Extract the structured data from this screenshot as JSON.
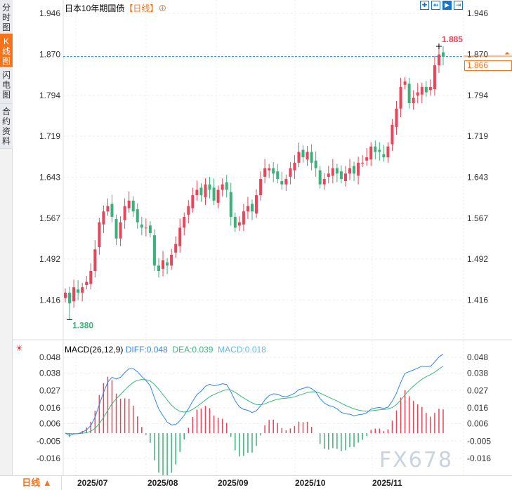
{
  "sidebar": {
    "tabs": [
      {
        "label": "分时图"
      },
      {
        "label": "K线图",
        "active": true
      },
      {
        "label": "闪电图"
      },
      {
        "label": "合约资料"
      }
    ]
  },
  "header": {
    "title": "日本10年期国债",
    "period": "【日线】",
    "zoom_icon": "circle-plus-icon"
  },
  "toolbar": [
    {
      "icon": "crosshair-icon"
    },
    {
      "icon": "fit-range-icon"
    },
    {
      "icon": "play-axis-icon",
      "active": true
    },
    {
      "icon": "jump-end-icon"
    }
  ],
  "colors": {
    "up": "#e8455a",
    "down": "#3bb27a",
    "diff": "#2f86f0",
    "dea": "#36b97b",
    "macd_label": "#5bbbe8",
    "accent": "#f87217",
    "current_line": "#1e88e5"
  },
  "chart_data": {
    "type": "candlestick",
    "y_ticks": [
      "1.946",
      "1.870",
      "1.794",
      "1.719",
      "1.643",
      "1.567",
      "1.492",
      "1.416"
    ],
    "ylim": [
      1.36,
      1.96
    ],
    "max_label": "1.885",
    "min_label": "1.380",
    "max_value": 1.885,
    "min_value": 1.38,
    "current_value": "1.866",
    "x_ticks": [
      "2025/07",
      "2025/08",
      "2025/09",
      "2025/10",
      "2025/11"
    ],
    "closes": [
      1.43,
      1.41,
      1.44,
      1.43,
      1.44,
      1.45,
      1.47,
      1.51,
      1.56,
      1.58,
      1.59,
      1.57,
      1.53,
      1.56,
      1.59,
      1.6,
      1.58,
      1.56,
      1.55,
      1.55,
      1.54,
      1.48,
      1.47,
      1.49,
      1.48,
      1.5,
      1.52,
      1.55,
      1.57,
      1.59,
      1.61,
      1.62,
      1.61,
      1.63,
      1.62,
      1.6,
      1.62,
      1.63,
      1.62,
      1.57,
      1.55,
      1.56,
      1.58,
      1.59,
      1.58,
      1.61,
      1.64,
      1.66,
      1.66,
      1.65,
      1.64,
      1.63,
      1.64,
      1.66,
      1.67,
      1.69,
      1.68,
      1.69,
      1.67,
      1.66,
      1.63,
      1.64,
      1.65,
      1.66,
      1.65,
      1.64,
      1.65,
      1.66,
      1.65,
      1.67,
      1.67,
      1.68,
      1.7,
      1.69,
      1.69,
      1.68,
      1.7,
      1.74,
      1.77,
      1.81,
      1.82,
      1.78,
      1.79,
      1.8,
      1.81,
      1.8,
      1.81,
      1.85,
      1.87,
      1.866
    ],
    "macd": {
      "label": "MACD(26,12,9)",
      "diff_label": "DIFF:0.048",
      "dea_label": "DEA:0.039",
      "macd_label": "MACD:0.018",
      "y_ticks": [
        "0.048",
        "0.038",
        "0.027",
        "0.016",
        "0.006",
        "-0.005",
        "-0.016"
      ],
      "ylim": [
        -0.027,
        0.054
      ]
    }
  },
  "footer": {
    "period": "日线 ▲"
  },
  "watermark": "FX678"
}
